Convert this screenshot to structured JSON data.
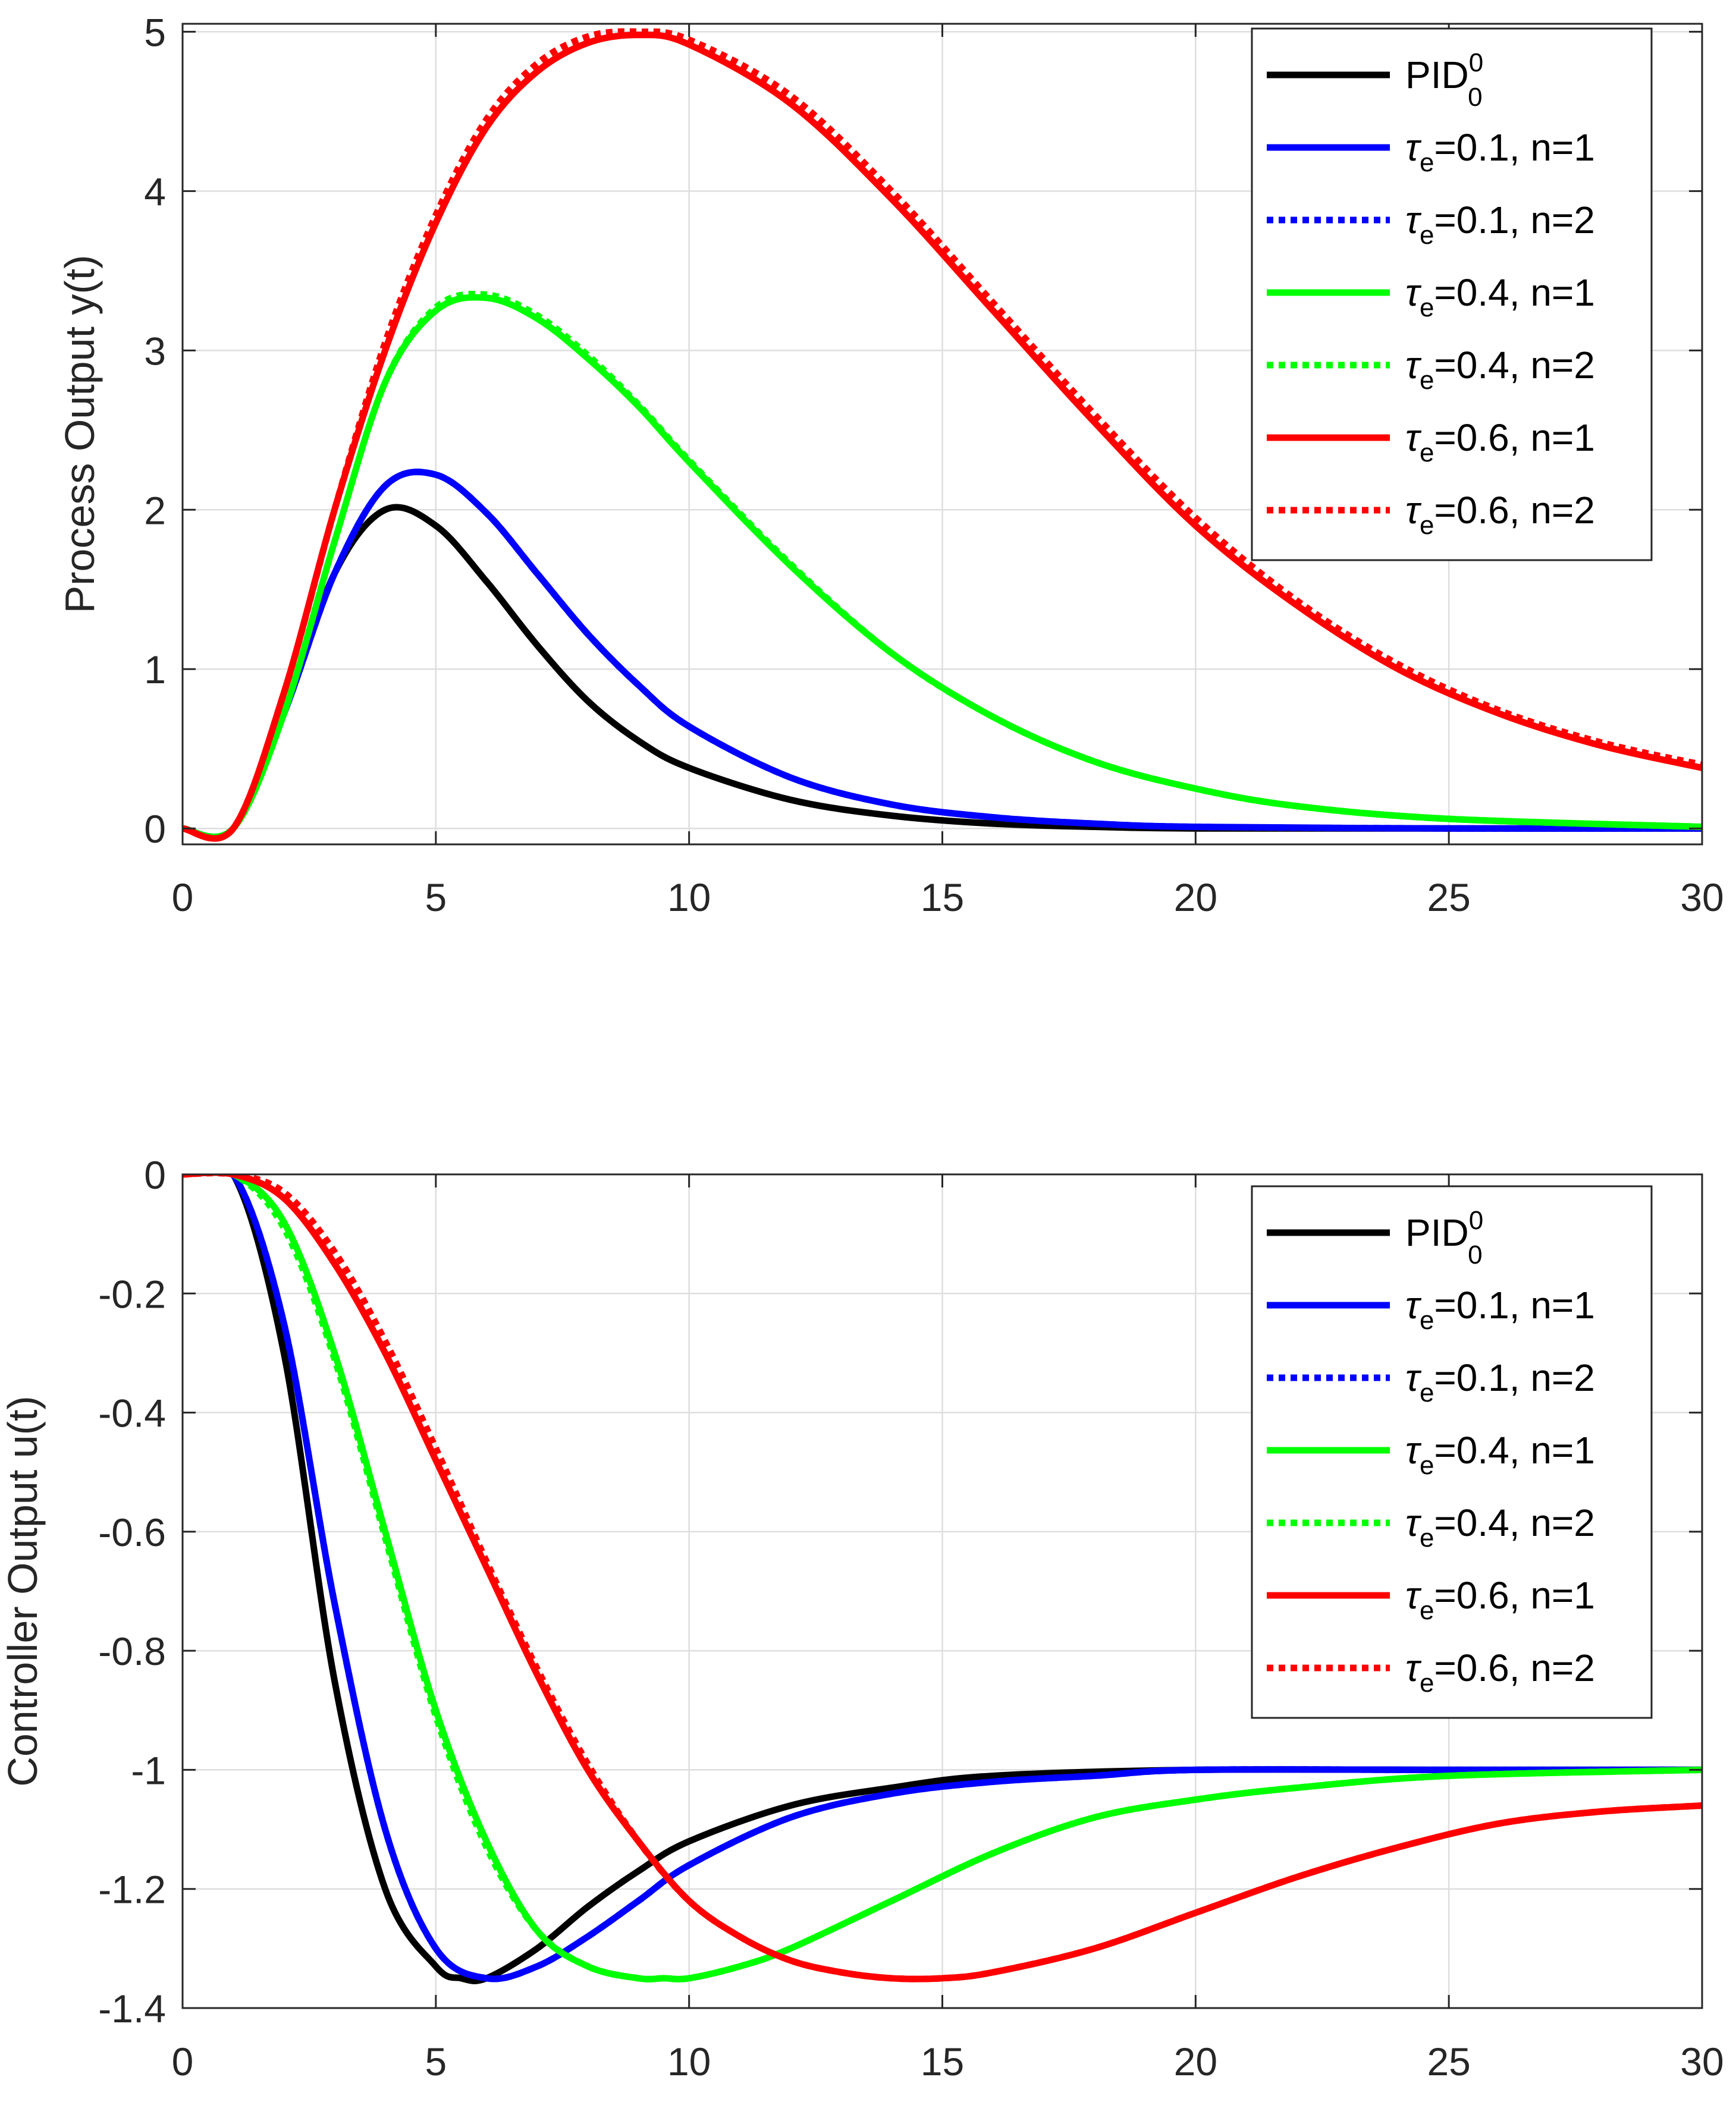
{
  "chart_data": [
    {
      "type": "line",
      "ylabel": "Process Output y(t)",
      "xlabel": "",
      "xlim": [
        0,
        30
      ],
      "ylim": [
        -0.1,
        5.05
      ],
      "x_ticks": [
        0,
        5,
        10,
        15,
        20,
        25,
        30
      ],
      "x_tick_labels": [
        "0",
        "5",
        "10",
        "15",
        "20",
        "25",
        "30"
      ],
      "y_ticks": [
        0,
        1,
        2,
        3,
        4,
        5
      ],
      "y_tick_labels": [
        "0",
        "1",
        "2",
        "3",
        "4",
        "5"
      ],
      "grid": true,
      "legend_position": "top-right",
      "series": [
        {
          "name": "PID",
          "name_sup": "0",
          "name_sub": "0",
          "color": "#000000",
          "dash": "solid",
          "x": [
            0,
            1,
            2,
            3,
            4,
            5,
            6,
            7,
            8,
            9,
            10,
            12,
            14,
            16,
            18,
            20,
            25,
            30
          ],
          "values": [
            0,
            0,
            0.72,
            1.6,
            2.0,
            1.9,
            1.55,
            1.15,
            0.8,
            0.55,
            0.38,
            0.18,
            0.08,
            0.03,
            0.01,
            0,
            0,
            0
          ]
        },
        {
          "name": "τe=0.1, n=1",
          "color": "#0000ff",
          "dash": "solid",
          "x": [
            0,
            1,
            2,
            3,
            4,
            5,
            6,
            7,
            8,
            9,
            10,
            12,
            14,
            16,
            18,
            20,
            25,
            30
          ],
          "values": [
            0,
            0,
            0.72,
            1.6,
            2.15,
            2.22,
            1.98,
            1.6,
            1.22,
            0.9,
            0.64,
            0.32,
            0.15,
            0.07,
            0.03,
            0.01,
            0,
            0
          ]
        },
        {
          "name": "τe=0.1, n=2",
          "color": "#0000ff",
          "dash": "dotted",
          "x": [
            0,
            1,
            2,
            3,
            4,
            5,
            6,
            7,
            8,
            9,
            10,
            12,
            14,
            16,
            18,
            20,
            25,
            30
          ],
          "values": [
            0,
            0,
            0.72,
            1.6,
            2.15,
            2.22,
            1.98,
            1.6,
            1.22,
            0.9,
            0.64,
            0.32,
            0.15,
            0.07,
            0.03,
            0.01,
            0,
            0
          ]
        },
        {
          "name": "τe=0.4, n=1",
          "color": "#00ff00",
          "dash": "solid",
          "x": [
            0,
            1,
            2,
            3,
            4,
            5,
            6,
            7,
            8,
            9,
            10,
            12,
            14,
            16,
            18,
            20,
            22,
            25,
            30
          ],
          "values": [
            0,
            0,
            0.72,
            1.8,
            2.8,
            3.25,
            3.33,
            3.2,
            2.95,
            2.65,
            2.3,
            1.65,
            1.1,
            0.7,
            0.42,
            0.25,
            0.14,
            0.06,
            0.01
          ]
        },
        {
          "name": "τe=0.4, n=2",
          "color": "#00ff00",
          "dash": "dotted",
          "x": [
            0,
            1,
            2,
            3,
            4,
            5,
            6,
            7,
            8,
            9,
            10,
            12,
            14,
            16,
            18,
            20,
            22,
            25,
            30
          ],
          "values": [
            0,
            0,
            0.72,
            1.8,
            2.8,
            3.27,
            3.35,
            3.22,
            2.97,
            2.66,
            2.31,
            1.66,
            1.1,
            0.7,
            0.42,
            0.25,
            0.14,
            0.06,
            0.01
          ]
        },
        {
          "name": "τe=0.6, n=1",
          "color": "#ff0000",
          "dash": "solid",
          "x": [
            0,
            1,
            2,
            3,
            4,
            5,
            6,
            7,
            8,
            9,
            10,
            12,
            14,
            16,
            18,
            20,
            22,
            24,
            26,
            28,
            30
          ],
          "values": [
            0,
            0,
            0.85,
            2.0,
            3.0,
            3.8,
            4.4,
            4.75,
            4.93,
            4.98,
            4.92,
            4.55,
            3.95,
            3.25,
            2.55,
            1.9,
            1.4,
            1.0,
            0.72,
            0.52,
            0.38
          ]
        },
        {
          "name": "τe=0.6, n=2",
          "color": "#ff0000",
          "dash": "dotted",
          "x": [
            0,
            1,
            2,
            3,
            4,
            5,
            6,
            7,
            8,
            9,
            10,
            12,
            14,
            16,
            18,
            20,
            22,
            24,
            26,
            28,
            30
          ],
          "values": [
            0,
            0,
            0.85,
            2.0,
            3.05,
            3.85,
            4.45,
            4.8,
            4.97,
            5.0,
            4.95,
            4.6,
            4.0,
            3.3,
            2.6,
            1.95,
            1.43,
            1.03,
            0.74,
            0.54,
            0.4
          ]
        }
      ]
    },
    {
      "type": "line",
      "ylabel": "Controller Output u(t)",
      "xlabel": "",
      "xlim": [
        0,
        30
      ],
      "ylim": [
        -1.4,
        0
      ],
      "x_ticks": [
        0,
        5,
        10,
        15,
        20,
        25,
        30
      ],
      "x_tick_labels": [
        "0",
        "5",
        "10",
        "15",
        "20",
        "25",
        "30"
      ],
      "y_ticks": [
        0,
        -0.2,
        -0.4,
        -0.6,
        -0.8,
        -1,
        -1.2,
        -1.4
      ],
      "y_tick_labels": [
        "0",
        "-0.2",
        "-0.4",
        "-0.6",
        "-0.8",
        "-1",
        "-1.2",
        "-1.4"
      ],
      "grid": true,
      "legend_position": "top-right",
      "series": [
        {
          "name": "PID",
          "name_sup": "0",
          "name_sub": "0",
          "color": "#000000",
          "dash": "solid",
          "x": [
            0,
            1,
            2,
            3,
            4,
            5,
            5.5,
            6,
            7,
            8,
            9,
            10,
            12,
            14,
            16,
            20,
            25,
            30
          ],
          "values": [
            0,
            0,
            -0.3,
            -0.85,
            -1.2,
            -1.33,
            -1.35,
            -1.35,
            -1.3,
            -1.23,
            -1.17,
            -1.12,
            -1.06,
            -1.03,
            -1.01,
            -1.0,
            -1.0,
            -1.0
          ]
        },
        {
          "name": "τe=0.1, n=1",
          "color": "#0000ff",
          "dash": "solid",
          "x": [
            0,
            1,
            2,
            3,
            4,
            5,
            6,
            7,
            8,
            9,
            10,
            12,
            14,
            16,
            18,
            20,
            25,
            30
          ],
          "values": [
            0,
            0,
            -0.25,
            -0.72,
            -1.1,
            -1.3,
            -1.35,
            -1.33,
            -1.28,
            -1.22,
            -1.16,
            -1.08,
            -1.04,
            -1.02,
            -1.01,
            -1.0,
            -1.0,
            -1.0
          ]
        },
        {
          "name": "τe=0.1, n=2",
          "color": "#0000ff",
          "dash": "dotted",
          "x": [
            0,
            1,
            2,
            3,
            4,
            5,
            6,
            7,
            8,
            9,
            10,
            12,
            14,
            16,
            18,
            20,
            25,
            30
          ],
          "values": [
            0,
            0,
            -0.25,
            -0.72,
            -1.1,
            -1.3,
            -1.35,
            -1.33,
            -1.28,
            -1.22,
            -1.16,
            -1.08,
            -1.04,
            -1.02,
            -1.01,
            -1.0,
            -1.0,
            -1.0
          ]
        },
        {
          "name": "τe=0.4, n=1",
          "color": "#00ff00",
          "dash": "solid",
          "x": [
            0,
            1,
            2,
            3,
            4,
            5,
            6,
            7,
            8,
            9,
            9.5,
            10,
            11,
            12,
            14,
            16,
            18,
            20,
            22,
            25,
            30
          ],
          "values": [
            0,
            0,
            -0.08,
            -0.3,
            -0.6,
            -0.9,
            -1.12,
            -1.27,
            -1.33,
            -1.35,
            -1.35,
            -1.35,
            -1.33,
            -1.3,
            -1.22,
            -1.14,
            -1.08,
            -1.05,
            -1.03,
            -1.01,
            -1.0
          ]
        },
        {
          "name": "τe=0.4, n=2",
          "color": "#00ff00",
          "dash": "dotted",
          "x": [
            0,
            1,
            2,
            3,
            4,
            5,
            6,
            7,
            8,
            9,
            9.5,
            10,
            11,
            12,
            14,
            16,
            18,
            20,
            22,
            25,
            30
          ],
          "values": [
            0,
            0,
            -0.09,
            -0.31,
            -0.61,
            -0.91,
            -1.13,
            -1.27,
            -1.33,
            -1.35,
            -1.35,
            -1.35,
            -1.33,
            -1.3,
            -1.22,
            -1.14,
            -1.08,
            -1.05,
            -1.03,
            -1.01,
            -1.0
          ]
        },
        {
          "name": "τe=0.6, n=1",
          "color": "#ff0000",
          "dash": "solid",
          "x": [
            0,
            1,
            2,
            3,
            4,
            5,
            6,
            7,
            8,
            9,
            10,
            11,
            12,
            13,
            14,
            15,
            16,
            18,
            20,
            22,
            24,
            26,
            28,
            30
          ],
          "values": [
            0,
            0,
            -0.04,
            -0.15,
            -0.3,
            -0.48,
            -0.66,
            -0.84,
            -1.0,
            -1.12,
            -1.22,
            -1.28,
            -1.32,
            -1.34,
            -1.35,
            -1.35,
            -1.34,
            -1.3,
            -1.24,
            -1.18,
            -1.13,
            -1.09,
            -1.07,
            -1.06
          ]
        },
        {
          "name": "τe=0.6, n=2",
          "color": "#ff0000",
          "dash": "dotted",
          "x": [
            0,
            1,
            2,
            3,
            4,
            5,
            6,
            7,
            8,
            9,
            10,
            11,
            12,
            13,
            14,
            15,
            16,
            18,
            20,
            22,
            24,
            26,
            28,
            30
          ],
          "values": [
            0,
            0,
            -0.03,
            -0.13,
            -0.28,
            -0.46,
            -0.65,
            -0.83,
            -0.99,
            -1.12,
            -1.22,
            -1.28,
            -1.32,
            -1.34,
            -1.35,
            -1.35,
            -1.34,
            -1.3,
            -1.24,
            -1.18,
            -1.13,
            -1.09,
            -1.07,
            -1.06
          ]
        }
      ]
    }
  ]
}
